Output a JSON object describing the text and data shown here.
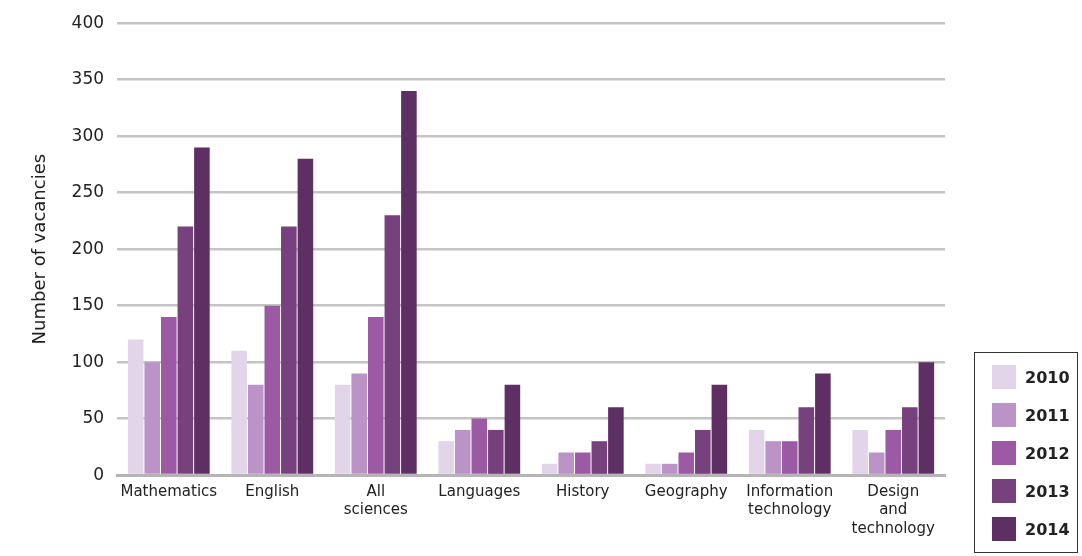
{
  "chart_data": {
    "type": "bar",
    "ylabel": "Number of vacancies",
    "categories": [
      "Mathematics",
      "English",
      "All sciences",
      "Languages",
      "History",
      "Geography",
      "Information technology",
      "Design and technology"
    ],
    "series": [
      {
        "name": "2010",
        "color": "#e2d5ea",
        "values": [
          120,
          110,
          80,
          30,
          10,
          10,
          40,
          40
        ]
      },
      {
        "name": "2011",
        "color": "#bb93c6",
        "values": [
          100,
          80,
          90,
          40,
          20,
          10,
          30,
          20
        ]
      },
      {
        "name": "2012",
        "color": "#9b5aa3",
        "values": [
          140,
          150,
          140,
          50,
          20,
          20,
          30,
          40
        ]
      },
      {
        "name": "2013",
        "color": "#76417d",
        "values": [
          220,
          220,
          230,
          40,
          30,
          40,
          60,
          60
        ]
      },
      {
        "name": "2014",
        "color": "#5d2f62",
        "values": [
          290,
          280,
          340,
          80,
          60,
          80,
          90,
          100
        ]
      }
    ],
    "ylim": [
      0,
      400
    ],
    "yticks": [
      0,
      50,
      100,
      150,
      200,
      250,
      300,
      350,
      400
    ],
    "grid": "y",
    "legend": "bottom right"
  }
}
